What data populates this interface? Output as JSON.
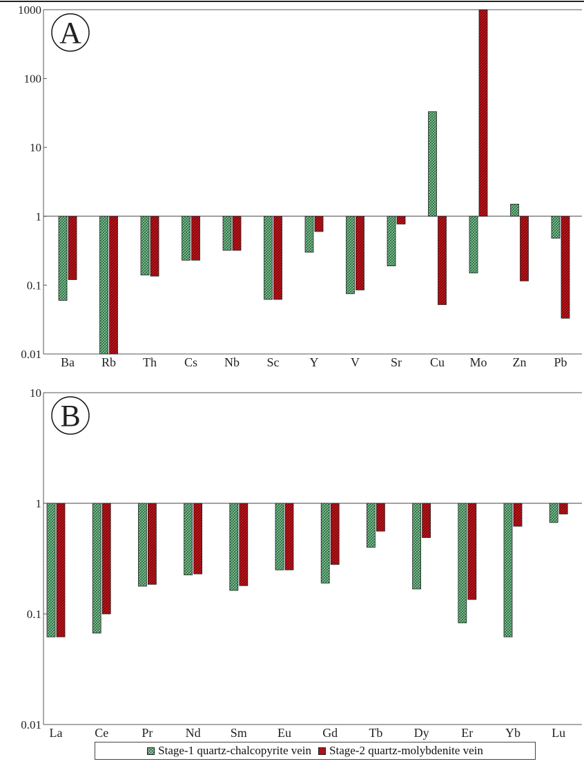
{
  "legend": {
    "series1": "Stage-1 quartz-chalcopyrite vein",
    "series2": "Stage-2 quartz-molybdenite vein"
  },
  "colors": {
    "series1": "#1f6a3c",
    "series2": "#c0161e",
    "axis": "#555555"
  },
  "chart_data": [
    {
      "type": "bar",
      "panel_label": "A",
      "yscale": "log",
      "ylim": [
        0.01,
        1000
      ],
      "yticks": [
        "0.01",
        "0.1",
        "1",
        "10",
        "100",
        "1000"
      ],
      "baseline": 1,
      "categories": [
        "Ba",
        "Rb",
        "Th",
        "Cs",
        "Nb",
        "Sc",
        "Y",
        "V",
        "Sr",
        "Cu",
        "Mo",
        "Zn",
        "Pb"
      ],
      "series": [
        {
          "name": "Stage-1 quartz-chalcopyrite vein",
          "values": [
            0.06,
            0.01,
            0.14,
            0.23,
            0.32,
            0.062,
            0.3,
            0.075,
            0.19,
            33,
            0.15,
            1.5,
            0.48
          ]
        },
        {
          "name": "Stage-2 quartz-molybdenite vein",
          "values": [
            0.12,
            0.01,
            0.135,
            0.23,
            0.32,
            0.062,
            0.6,
            0.085,
            0.77,
            0.052,
            1000,
            0.115,
            0.033
          ]
        }
      ]
    },
    {
      "type": "bar",
      "panel_label": "B",
      "yscale": "log",
      "ylim": [
        0.01,
        10
      ],
      "yticks": [
        "0.01",
        "0.1",
        "1",
        "10"
      ],
      "baseline": 1,
      "categories": [
        "La",
        "Ce",
        "Pr",
        "Nd",
        "Sm",
        "Eu",
        "Gd",
        "Tb",
        "Dy",
        "Er",
        "Yb",
        "Lu"
      ],
      "series": [
        {
          "name": "Stage-1 quartz-chalcopyrite vein",
          "values": [
            0.062,
            0.067,
            0.178,
            0.225,
            0.163,
            0.25,
            0.19,
            0.4,
            0.168,
            0.083,
            0.062,
            0.67
          ]
        },
        {
          "name": "Stage-2 quartz-molybdenite vein",
          "values": [
            0.062,
            0.1,
            0.185,
            0.23,
            0.18,
            0.25,
            0.28,
            0.56,
            0.49,
            0.135,
            0.62,
            0.8
          ]
        }
      ]
    }
  ]
}
